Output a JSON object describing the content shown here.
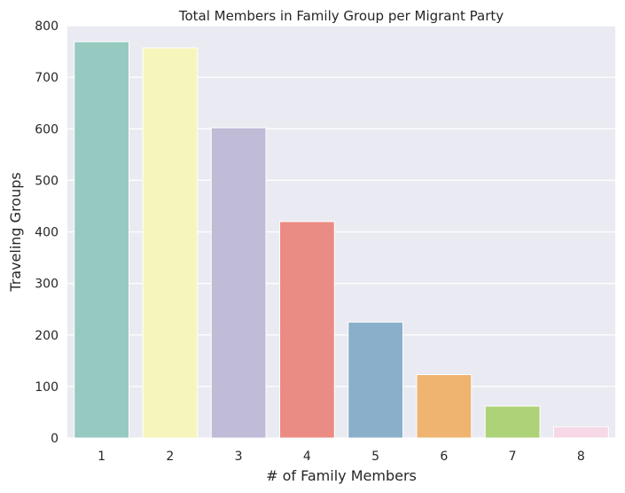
{
  "chart_data": {
    "type": "bar",
    "title": "Total Members in Family Group per Migrant Party",
    "xlabel": "# of Family Members",
    "ylabel": "Traveling Groups",
    "categories": [
      "1",
      "2",
      "3",
      "4",
      "5",
      "6",
      "7",
      "8"
    ],
    "values": [
      769,
      757,
      602,
      420,
      225,
      123,
      62,
      22
    ],
    "ylim": [
      0,
      800
    ],
    "yticks": [
      "0",
      "100",
      "200",
      "300",
      "400",
      "500",
      "600",
      "700",
      "800"
    ],
    "grid": true,
    "colors": [
      "#96cac1",
      "#f6f6bc",
      "#c0bbd7",
      "#ea8c83",
      "#8aafca",
      "#efb470",
      "#aed277",
      "#f6d8e6"
    ],
    "background": "#eaeaf2",
    "gridline_color": "#ffffff"
  }
}
